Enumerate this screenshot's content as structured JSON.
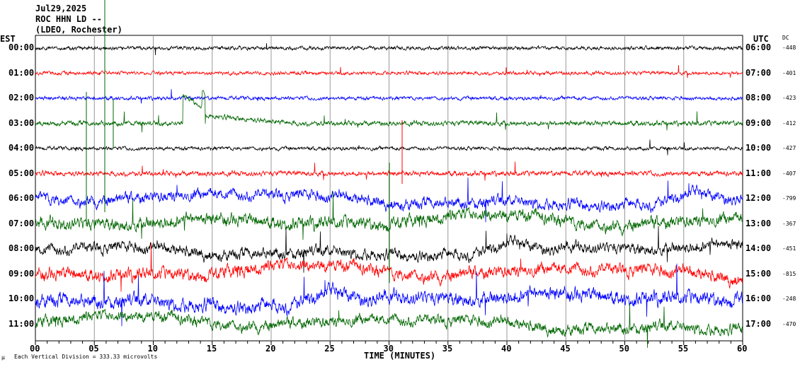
{
  "header": {
    "date": "Jul29,2025",
    "station": "ROC HHN LD --",
    "network": "(LDEO, Rochester)"
  },
  "left_axis_title": "EST",
  "right_axis_title": "UTC",
  "dc_title": "DC",
  "chart_data": {
    "type": "line",
    "title": "Jul29,2025 ROC HHN LD -- (LDEO, Rochester)",
    "xlabel": "TIME (MINUTES)",
    "xlim": [
      0,
      60
    ],
    "x_ticks": [
      "00",
      "05",
      "10",
      "15",
      "20",
      "25",
      "30",
      "35",
      "40",
      "45",
      "50",
      "55",
      "60"
    ],
    "grid": true,
    "scale_note": "Each Vertical Division =  333.33 microvolts",
    "trace_colors": [
      "#000000",
      "#ff0000",
      "#0000ff",
      "#006600"
    ],
    "traces": [
      {
        "est": "00:00",
        "utc": "06:00",
        "dc": "-448"
      },
      {
        "est": "01:00",
        "utc": "07:00",
        "dc": "-401"
      },
      {
        "est": "02:00",
        "utc": "08:00",
        "dc": "-423"
      },
      {
        "est": "03:00",
        "utc": "09:00",
        "dc": "-412"
      },
      {
        "est": "04:00",
        "utc": "10:00",
        "dc": "-427"
      },
      {
        "est": "05:00",
        "utc": "11:00",
        "dc": "-407"
      },
      {
        "est": "06:00",
        "utc": "12:00",
        "dc": "-799"
      },
      {
        "est": "07:00",
        "utc": "13:00",
        "dc": "-367"
      },
      {
        "est": "08:00",
        "utc": "14:00",
        "dc": "-451"
      },
      {
        "est": "09:00",
        "utc": "15:00",
        "dc": "-815"
      },
      {
        "est": "10:00",
        "utc": "16:00",
        "dc": "-248"
      },
      {
        "est": "11:00",
        "utc": "17:00",
        "dc": "-470"
      }
    ]
  }
}
